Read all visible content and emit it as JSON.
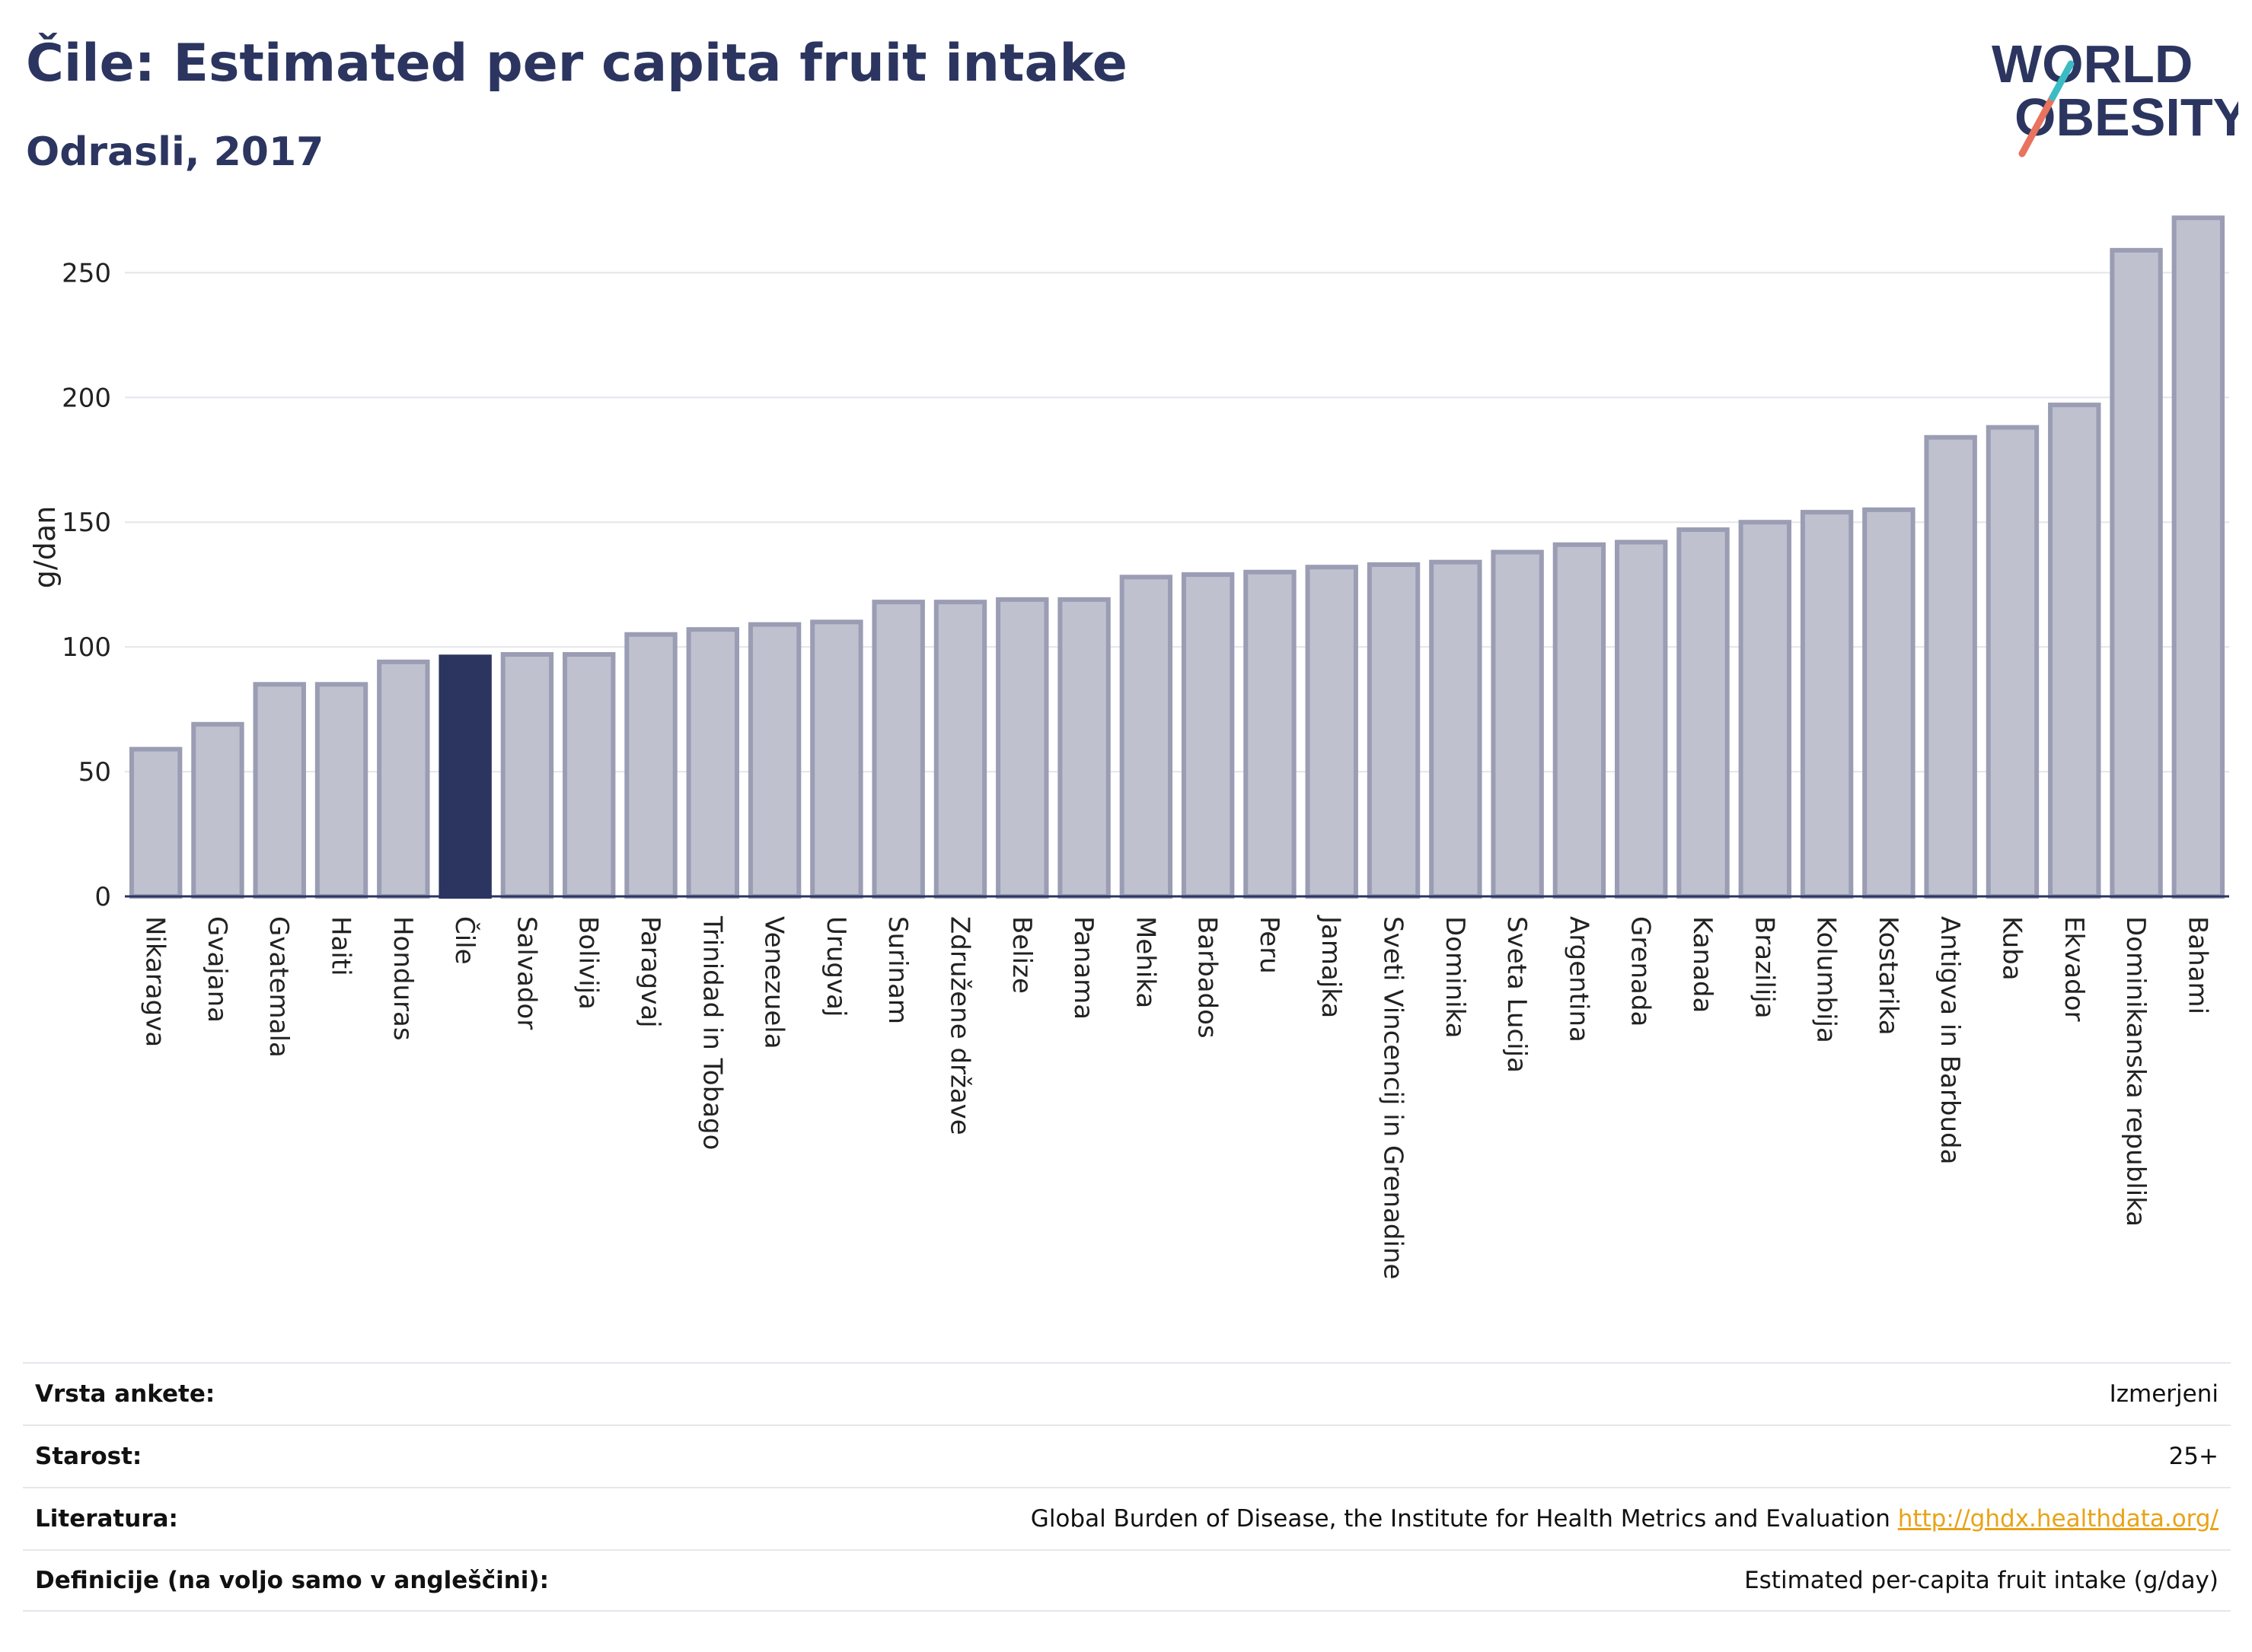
{
  "header": {
    "title": "Čile: Estimated per capita fruit intake",
    "subtitle": "Odrasli, 2017",
    "logo_top": "WORLD",
    "logo_bottom": "OBESITY"
  },
  "colors": {
    "highlight": "#2b3560",
    "bar_fill": "#bfc1cf",
    "bar_stroke": "#9a9db3",
    "logo_text": "#2b3560",
    "logo_red": "#e8735f",
    "logo_teal": "#3bbcc4",
    "link": "#e8a317"
  },
  "chart_data": {
    "type": "bar",
    "ylabel": "g/dan",
    "ylim": [
      0,
      280
    ],
    "yticks": [
      0,
      50,
      100,
      150,
      200,
      250
    ],
    "grid": true,
    "highlight_category": "Čile",
    "categories": [
      "Nikaragva",
      "Gvajana",
      "Gvatemala",
      "Haiti",
      "Honduras",
      "Čile",
      "Salvador",
      "Bolivija",
      "Paragvaj",
      "Trinidad in Tobago",
      "Venezuela",
      "Urugvaj",
      "Surinam",
      "Združene države",
      "Belize",
      "Panama",
      "Mehika",
      "Barbados",
      "Peru",
      "Jamajka",
      "Sveti Vincencij in Grenadine",
      "Dominika",
      "Sveta Lucija",
      "Argentina",
      "Grenada",
      "Kanada",
      "Brazilija",
      "Kolumbija",
      "Kostarika",
      "Antigva in Barbuda",
      "Kuba",
      "Ekvador",
      "Dominikanska republika",
      "Bahami"
    ],
    "values": [
      59,
      69,
      85,
      85,
      94,
      96,
      97,
      97,
      105,
      107,
      109,
      110,
      118,
      118,
      119,
      119,
      128,
      129,
      130,
      132,
      133,
      134,
      138,
      141,
      142,
      147,
      150,
      154,
      155,
      184,
      188,
      197,
      259,
      272
    ]
  },
  "info": [
    {
      "label": "Vrsta ankete:",
      "value": "Izmerjeni"
    },
    {
      "label": "Starost:",
      "value": "25+"
    },
    {
      "label": "Literatura:",
      "value": "Global Burden of Disease, the Institute for Health Metrics and Evaluation",
      "link": "http://ghdx.healthdata.org/"
    },
    {
      "label": "Definicije (na voljo samo v angleščini):",
      "value": "Estimated per-capita fruit intake (g/day)"
    }
  ]
}
